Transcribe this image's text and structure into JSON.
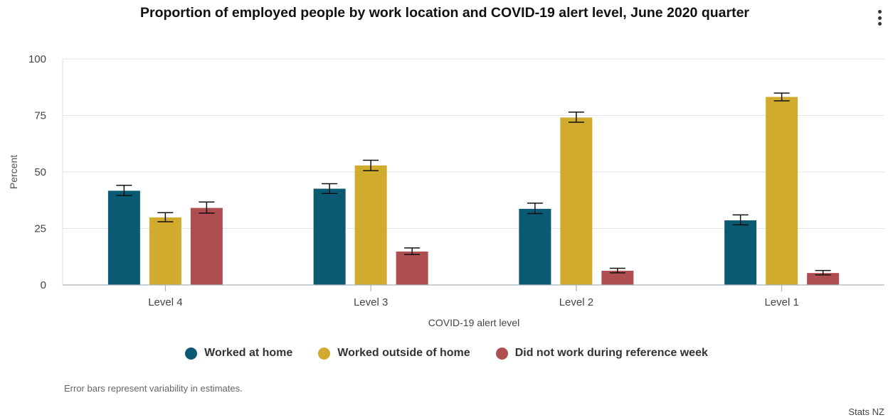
{
  "menu_icon": "more-vertical-icon",
  "chart_data": {
    "type": "bar",
    "title": "Proportion of employed people by work location and COVID-19 alert level, June 2020 quarter",
    "xlabel": "COVID-19 alert level",
    "ylabel": "Percent",
    "categories": [
      "Level 4",
      "Level 3",
      "Level 2",
      "Level 1"
    ],
    "ylim": [
      0,
      100
    ],
    "yticks": [
      "0",
      "25",
      "50",
      "75",
      "100"
    ],
    "grid": true,
    "legend_position": "bottom",
    "series": [
      {
        "name": "Worked at home",
        "color": "#0b5a73",
        "values": [
          41.7,
          42.6,
          33.7,
          28.6
        ],
        "errors": [
          [
            39.6,
            44.1
          ],
          [
            40.5,
            44.8
          ],
          [
            31.6,
            36.2
          ],
          [
            26.6,
            31.0
          ]
        ]
      },
      {
        "name": "Worked outside of home",
        "color": "#d1ab2e",
        "values": [
          29.9,
          52.9,
          74.1,
          83.2
        ],
        "errors": [
          [
            28.0,
            32.0
          ],
          [
            50.6,
            55.2
          ],
          [
            72.0,
            76.5
          ],
          [
            81.5,
            84.9
          ]
        ]
      },
      {
        "name": "Did not work during reference week",
        "color": "#ae4e50",
        "values": [
          34.1,
          14.8,
          6.3,
          5.3
        ],
        "errors": [
          [
            31.8,
            36.7
          ],
          [
            13.5,
            16.4
          ],
          [
            5.4,
            7.4
          ],
          [
            4.5,
            6.4
          ]
        ]
      }
    ],
    "note": "Error bars represent variability in estimates.",
    "credit": "Stats NZ"
  }
}
